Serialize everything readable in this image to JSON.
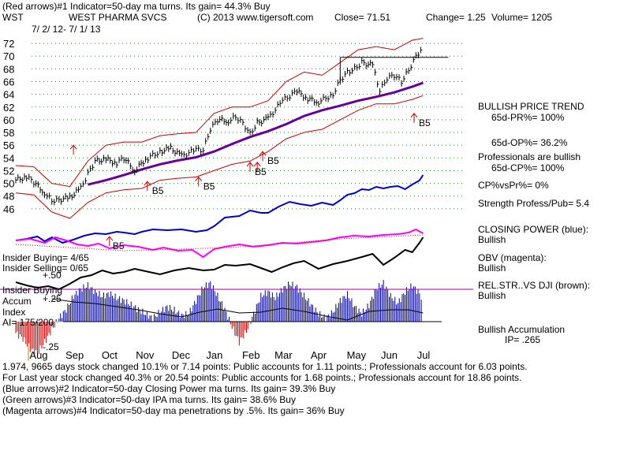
{
  "header": {
    "line1": "(Red arrows)#1 Indicator=50-day ma turns. Its gain= 44.3% Buy",
    "symbol": "WST",
    "company": "WEST PHARMA SVCS",
    "copyright": "(C) 2013 www.tigersoft.com",
    "close": "Close=  71.51",
    "change": "Change= 1.25",
    "volume": "Volume= 1205",
    "date_range": "7/ 2/ 12-  7/ 1/ 13"
  },
  "right_panel": {
    "trend_title": "BULLISH PRICE TREND",
    "pr": "65d-PR%= 100%",
    "op": "65d-OP%= 36.2%",
    "pros": "Professionals are bullish",
    "cp": "65d-CP%= 100%",
    "cpvspr": "CP%vsPr%=  0%",
    "strength": "Strength Profess/Pub= 5.4",
    "closing_power": "CLOSING POWER (blue):",
    "closing_power_val": "Bullish",
    "obv": "OBV (magenta):",
    "obv_val": "Bullish",
    "relstr": "REL.STR..VS DJI (brown):",
    "relstr_val": "Bullish",
    "accum": "Bullish Accumulation",
    "ip": "IP=  .265"
  },
  "left_panel": {
    "insider_buying": "Insider Buying= 4/65",
    "insider_selling": "Insider Selling= 0/65",
    "plus50": "+.50",
    "insider_buying2": "Insider Buying",
    "accum": "Accum",
    "plus25": "+.25",
    "index": "Index",
    "ai": "AI= 175/200",
    "minus25": "-.25"
  },
  "footer": {
    "line1": "1.974, 9665 days stock changed  10.1% or  7.14 points:  Public accounts for  1.11 points.;  Professionals account for  6.03 points.",
    "line2": "For Last year stock changed  40.3% or  20.54 points:  Public accounts for  1.68 points.;  Professionals account for  18.86 points.",
    "line3": "(Blue arrows)#2 Indicator=50-day Closing Power ma turns. Its gain= 39.3% Buy",
    "line4": "(Green arrows)#3 Indicator=50-day IPA ma turns. Its gain= 38.6% Buy",
    "line5": "(Magenta arrows)#4 Indicator=50-day ma penetrations by .5%. Its gain= 36% Buy"
  },
  "colors": {
    "price": "#000000",
    "band": "#cc0000",
    "ma": "#660099",
    "closing_power": "#0000cc",
    "obv": "#ff00ff",
    "relstr": "#000000",
    "accum_pos": "#000099",
    "accum_neg": "#cc0000",
    "grid": "#009900",
    "arrow": "#cc0000"
  },
  "chart_data": {
    "type": "line",
    "title": "WST  WEST PHARMA SVCS",
    "y_ticks": [
      46,
      48,
      50,
      52,
      54,
      56,
      58,
      60,
      62,
      64,
      66,
      68,
      70,
      72
    ],
    "ylim": [
      44,
      73
    ],
    "x_months": [
      "Aug",
      "Sep",
      "Oct",
      "Nov",
      "Dec",
      "Jan",
      "Feb",
      "Mar",
      "Apr",
      "May",
      "Jun",
      "Jul"
    ],
    "x_month_pos": [
      0.6,
      1.6,
      2.6,
      3.55,
      4.55,
      5.5,
      6.5,
      7.4,
      8.4,
      9.4,
      10.35,
      11.35
    ],
    "xlim": [
      0,
      12.3
    ],
    "price_series": [
      [
        0.0,
        50.5
      ],
      [
        0.3,
        51.0
      ],
      [
        0.5,
        50.2
      ],
      [
        0.8,
        48.5
      ],
      [
        1.0,
        47.3
      ],
      [
        1.2,
        47.4
      ],
      [
        1.5,
        47.8
      ],
      [
        1.8,
        49.2
      ],
      [
        2.0,
        51.5
      ],
      [
        2.2,
        53.5
      ],
      [
        2.5,
        53.8
      ],
      [
        2.8,
        53.2
      ],
      [
        3.0,
        54.0
      ],
      [
        3.3,
        52.0
      ],
      [
        3.6,
        53.8
      ],
      [
        4.0,
        55.0
      ],
      [
        4.3,
        55.5
      ],
      [
        4.6,
        54.3
      ],
      [
        5.0,
        55.3
      ],
      [
        5.2,
        55.2
      ],
      [
        5.4,
        58.5
      ],
      [
        5.6,
        60.0
      ],
      [
        5.9,
        59.8
      ],
      [
        6.1,
        60.5
      ],
      [
        6.3,
        59.5
      ],
      [
        6.5,
        57.8
      ],
      [
        6.7,
        59.5
      ],
      [
        7.0,
        60.2
      ],
      [
        7.4,
        63.0
      ],
      [
        7.8,
        64.5
      ],
      [
        8.1,
        63.3
      ],
      [
        8.4,
        62.8
      ],
      [
        8.8,
        64.0
      ],
      [
        9.0,
        66.3
      ],
      [
        9.2,
        67.5
      ],
      [
        9.4,
        68.0
      ],
      [
        9.6,
        69.0
      ],
      [
        9.9,
        68.5
      ],
      [
        10.1,
        64.5
      ],
      [
        10.3,
        66.5
      ],
      [
        10.5,
        67.0
      ],
      [
        10.7,
        66.0
      ],
      [
        10.9,
        67.8
      ],
      [
        11.1,
        70.0
      ],
      [
        11.3,
        71.5
      ]
    ],
    "upper_band": [
      [
        0.0,
        52.8
      ],
      [
        0.5,
        52.6
      ],
      [
        1.0,
        50.0
      ],
      [
        1.5,
        49.5
      ],
      [
        2.0,
        53.5
      ],
      [
        2.5,
        56.0
      ],
      [
        3.0,
        56.5
      ],
      [
        3.5,
        56.5
      ],
      [
        4.0,
        57.5
      ],
      [
        4.5,
        57.8
      ],
      [
        5.0,
        58.0
      ],
      [
        5.5,
        61.0
      ],
      [
        6.0,
        62.0
      ],
      [
        6.5,
        62.0
      ],
      [
        7.0,
        63.0
      ],
      [
        7.5,
        66.0
      ],
      [
        8.0,
        67.5
      ],
      [
        8.5,
        67.0
      ],
      [
        9.0,
        69.0
      ],
      [
        9.5,
        71.0
      ],
      [
        10.0,
        71.5
      ],
      [
        10.5,
        71.0
      ],
      [
        11.0,
        72.5
      ],
      [
        11.3,
        72.8
      ]
    ],
    "lower_band": [
      [
        0.0,
        48.5
      ],
      [
        0.5,
        48.2
      ],
      [
        1.0,
        45.5
      ],
      [
        1.5,
        44.5
      ],
      [
        2.0,
        47.0
      ],
      [
        2.5,
        48.5
      ],
      [
        3.0,
        49.0
      ],
      [
        3.5,
        49.2
      ],
      [
        4.0,
        50.5
      ],
      [
        4.5,
        50.8
      ],
      [
        5.0,
        51.0
      ],
      [
        5.5,
        52.0
      ],
      [
        6.0,
        53.0
      ],
      [
        6.5,
        53.5
      ],
      [
        7.0,
        55.0
      ],
      [
        7.5,
        57.0
      ],
      [
        8.0,
        58.0
      ],
      [
        8.5,
        58.5
      ],
      [
        9.0,
        60.0
      ],
      [
        9.5,
        61.5
      ],
      [
        10.0,
        62.5
      ],
      [
        10.5,
        62.5
      ],
      [
        11.0,
        63.2
      ],
      [
        11.3,
        63.8
      ]
    ],
    "ma50": [
      [
        2.0,
        49.8
      ],
      [
        2.5,
        50.5
      ],
      [
        3.0,
        51.3
      ],
      [
        3.5,
        52.2
      ],
      [
        4.0,
        53.0
      ],
      [
        4.5,
        53.6
      ],
      [
        5.0,
        54.1
      ],
      [
        5.5,
        55.0
      ],
      [
        6.0,
        56.2
      ],
      [
        6.5,
        57.3
      ],
      [
        7.0,
        58.2
      ],
      [
        7.5,
        59.3
      ],
      [
        8.0,
        60.6
      ],
      [
        8.5,
        61.5
      ],
      [
        9.0,
        62.2
      ],
      [
        9.5,
        63.0
      ],
      [
        10.0,
        63.6
      ],
      [
        10.5,
        64.3
      ],
      [
        11.0,
        65.2
      ],
      [
        11.3,
        65.8
      ]
    ],
    "breakout_line": [
      [
        9.0,
        69.8
      ],
      [
        12.0,
        69.8
      ]
    ],
    "breakout_tick": [
      [
        9.0,
        69.8
      ],
      [
        9.0,
        65.5
      ]
    ],
    "closing_power_y": [
      [
        0.0,
        305
      ],
      [
        0.3,
        303
      ],
      [
        0.6,
        300
      ],
      [
        0.8,
        306
      ],
      [
        1.0,
        301
      ],
      [
        1.3,
        308
      ],
      [
        1.6,
        304
      ],
      [
        1.9,
        299
      ],
      [
        2.2,
        296
      ],
      [
        2.5,
        297
      ],
      [
        2.8,
        294
      ],
      [
        3.0,
        295
      ],
      [
        3.3,
        297
      ],
      [
        3.5,
        294
      ],
      [
        3.8,
        291
      ],
      [
        4.2,
        292
      ],
      [
        4.6,
        291
      ],
      [
        5.0,
        294
      ],
      [
        5.3,
        292
      ],
      [
        5.5,
        287
      ],
      [
        5.8,
        276
      ],
      [
        6.2,
        274
      ],
      [
        6.5,
        267
      ],
      [
        6.8,
        270
      ],
      [
        7.0,
        270
      ],
      [
        7.3,
        262
      ],
      [
        7.6,
        256
      ],
      [
        7.9,
        259
      ],
      [
        8.2,
        261
      ],
      [
        8.5,
        257
      ],
      [
        8.8,
        260
      ],
      [
        9.0,
        254
      ],
      [
        9.2,
        247
      ],
      [
        9.4,
        245
      ],
      [
        9.6,
        240
      ],
      [
        9.8,
        241
      ],
      [
        10.0,
        237
      ],
      [
        10.2,
        239
      ],
      [
        10.4,
        237
      ],
      [
        10.6,
        236
      ],
      [
        10.8,
        240
      ],
      [
        11.0,
        234
      ],
      [
        11.2,
        229
      ],
      [
        11.3,
        222
      ]
    ],
    "obv_y": [
      [
        0.0,
        305
      ],
      [
        0.4,
        303
      ],
      [
        0.8,
        308
      ],
      [
        1.1,
        301
      ],
      [
        1.4,
        305
      ],
      [
        1.7,
        310
      ],
      [
        2.0,
        312
      ],
      [
        2.3,
        309
      ],
      [
        2.6,
        315
      ],
      [
        3.0,
        311
      ],
      [
        3.4,
        313
      ],
      [
        3.8,
        317
      ],
      [
        4.1,
        314
      ],
      [
        4.5,
        318
      ],
      [
        4.9,
        317
      ],
      [
        5.2,
        326
      ],
      [
        5.5,
        316
      ],
      [
        5.8,
        313
      ],
      [
        6.2,
        310
      ],
      [
        6.6,
        313
      ],
      [
        7.0,
        311
      ],
      [
        7.4,
        308
      ],
      [
        7.8,
        309
      ],
      [
        8.2,
        307
      ],
      [
        8.6,
        305
      ],
      [
        9.0,
        301
      ],
      [
        9.4,
        299
      ],
      [
        9.8,
        300
      ],
      [
        10.2,
        298
      ],
      [
        10.6,
        297
      ],
      [
        10.9,
        295
      ],
      [
        11.1,
        291
      ],
      [
        11.3,
        296
      ]
    ],
    "relstr_y": [
      [
        0.0,
        358
      ],
      [
        0.3,
        362
      ],
      [
        0.6,
        365
      ],
      [
        0.9,
        363
      ],
      [
        1.2,
        367
      ],
      [
        1.5,
        360
      ],
      [
        1.8,
        352
      ],
      [
        2.1,
        349
      ],
      [
        2.4,
        343
      ],
      [
        2.7,
        347
      ],
      [
        3.0,
        345
      ],
      [
        3.3,
        341
      ],
      [
        3.6,
        344
      ],
      [
        4.0,
        348
      ],
      [
        4.4,
        343
      ],
      [
        4.8,
        340
      ],
      [
        5.2,
        343
      ],
      [
        5.5,
        342
      ],
      [
        5.8,
        336
      ],
      [
        6.1,
        337
      ],
      [
        6.5,
        335
      ],
      [
        6.8,
        340
      ],
      [
        7.1,
        345
      ],
      [
        7.4,
        339
      ],
      [
        7.7,
        334
      ],
      [
        8.0,
        331
      ],
      [
        8.4,
        341
      ],
      [
        8.8,
        335
      ],
      [
        9.2,
        331
      ],
      [
        9.6,
        326
      ],
      [
        9.9,
        322
      ],
      [
        10.2,
        336
      ],
      [
        10.5,
        327
      ],
      [
        10.8,
        317
      ],
      [
        11.0,
        320
      ],
      [
        11.2,
        308
      ],
      [
        11.3,
        301
      ]
    ],
    "accum_index": [
      [
        0.0,
        -0.12
      ],
      [
        0.2,
        -0.18
      ],
      [
        0.4,
        -0.3
      ],
      [
        0.6,
        -0.35
      ],
      [
        0.8,
        -0.22
      ],
      [
        1.0,
        -0.08
      ],
      [
        1.2,
        0.05
      ],
      [
        1.4,
        0.15
      ],
      [
        1.6,
        0.3
      ],
      [
        1.8,
        0.38
      ],
      [
        2.0,
        0.42
      ],
      [
        2.2,
        0.35
      ],
      [
        2.4,
        0.3
      ],
      [
        2.6,
        0.33
      ],
      [
        2.8,
        0.28
      ],
      [
        3.0,
        0.25
      ],
      [
        3.2,
        0.2
      ],
      [
        3.4,
        0.15
      ],
      [
        3.6,
        0.1
      ],
      [
        3.8,
        0.05
      ],
      [
        4.0,
        0.12
      ],
      [
        4.2,
        0.18
      ],
      [
        4.4,
        0.14
      ],
      [
        4.6,
        0.08
      ],
      [
        4.8,
        0.1
      ],
      [
        5.0,
        0.25
      ],
      [
        5.2,
        0.4
      ],
      [
        5.4,
        0.45
      ],
      [
        5.6,
        0.3
      ],
      [
        5.8,
        0.15
      ],
      [
        6.0,
        -0.05
      ],
      [
        6.2,
        -0.22
      ],
      [
        6.4,
        -0.1
      ],
      [
        6.6,
        0.1
      ],
      [
        6.8,
        0.3
      ],
      [
        7.0,
        0.35
      ],
      [
        7.2,
        0.28
      ],
      [
        7.4,
        0.38
      ],
      [
        7.6,
        0.44
      ],
      [
        7.8,
        0.4
      ],
      [
        8.0,
        0.3
      ],
      [
        8.2,
        0.2
      ],
      [
        8.4,
        0.1
      ],
      [
        8.6,
        0.05
      ],
      [
        8.8,
        0.12
      ],
      [
        9.0,
        0.25
      ],
      [
        9.2,
        0.32
      ],
      [
        9.4,
        0.18
      ],
      [
        9.6,
        0.1
      ],
      [
        9.8,
        0.2
      ],
      [
        10.0,
        0.38
      ],
      [
        10.2,
        0.45
      ],
      [
        10.4,
        0.3
      ],
      [
        10.6,
        0.22
      ],
      [
        10.8,
        0.35
      ],
      [
        11.0,
        0.42
      ],
      [
        11.2,
        0.33
      ],
      [
        11.3,
        0.25
      ]
    ],
    "accum_ylim": [
      -0.32,
      0.44
    ],
    "accum_ma_y": [
      [
        1.0,
        379
      ],
      [
        1.6,
        383
      ],
      [
        2.2,
        385
      ],
      [
        2.8,
        389
      ],
      [
        3.4,
        393
      ],
      [
        4.0,
        398
      ],
      [
        4.6,
        402
      ],
      [
        5.1,
        396
      ],
      [
        5.6,
        392
      ],
      [
        6.2,
        397
      ],
      [
        6.8,
        396
      ],
      [
        7.4,
        391
      ],
      [
        8.0,
        395
      ],
      [
        8.6,
        401
      ],
      [
        9.2,
        406
      ],
      [
        9.8,
        395
      ],
      [
        10.4,
        393
      ],
      [
        10.9,
        393
      ],
      [
        11.3,
        397
      ]
    ],
    "red_arrows": [
      {
        "x": 1.6,
        "y": 56.0,
        "label": ""
      },
      {
        "x": 3.65,
        "y": 50.3,
        "label": "B5"
      },
      {
        "x": 5.07,
        "y": 51.0,
        "label": "B5"
      },
      {
        "x": 6.5,
        "y": 53.3,
        "label": "B5"
      },
      {
        "x": 6.7,
        "y": 53.3,
        "label": ""
      },
      {
        "x": 6.85,
        "y": 55.0,
        "label": "B5"
      },
      {
        "x": 11.05,
        "y": 61.0,
        "label": "B5"
      }
    ],
    "cp_arrow_label": "B5"
  }
}
